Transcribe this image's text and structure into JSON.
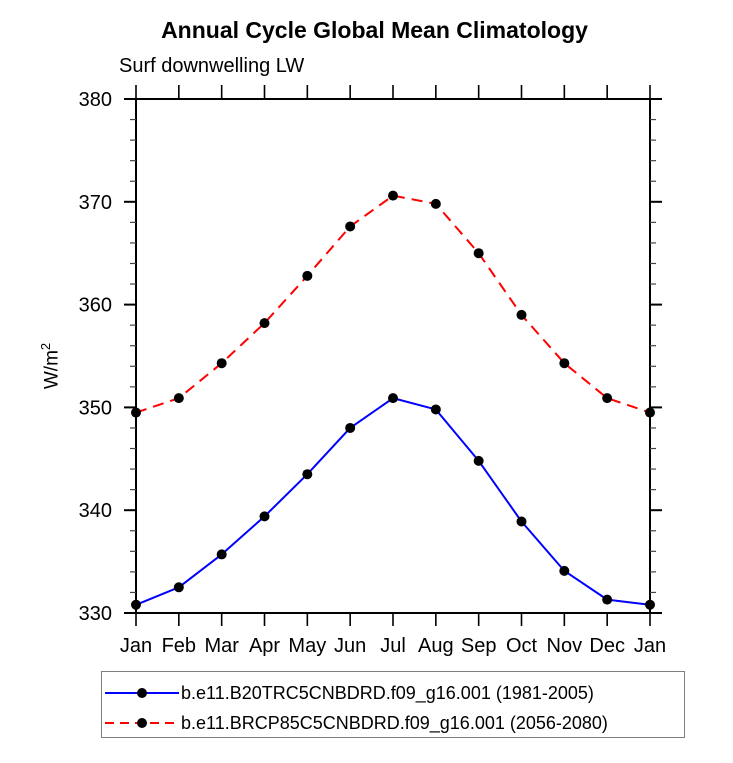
{
  "title": "Annual Cycle Global Mean Climatology",
  "subtitle": "Surf downwelling LW",
  "ylabel": {
    "base": "W/m",
    "sup": "2"
  },
  "colors": {
    "series1": "#0000ff",
    "series2": "#ff0000",
    "marker": "#000000",
    "axis": "#000000",
    "minor_tick": "#444444",
    "legend_border": "#7f7f7f"
  },
  "chart_data": {
    "type": "line",
    "title": "Annual Cycle Global Mean Climatology",
    "subtitle": "Surf downwelling LW",
    "ylabel": "W/m2",
    "x_categories": [
      "Jan",
      "Feb",
      "Mar",
      "Apr",
      "May",
      "Jun",
      "Jul",
      "Aug",
      "Sep",
      "Oct",
      "Nov",
      "Dec",
      "Jan"
    ],
    "ylim": [
      330,
      380
    ],
    "y_major_ticks": [
      330,
      340,
      350,
      360,
      370,
      380
    ],
    "y_minor_step": 2,
    "grid": false,
    "legend_position": "bottom",
    "series": [
      {
        "name": "b.e11.B20TRC5CNBDRD.f09_g16.001 (1981-2005)",
        "color": "#0000ff",
        "style": "solid",
        "marker": "filled-circle",
        "values": [
          330.8,
          332.5,
          335.7,
          339.4,
          343.5,
          348.0,
          350.9,
          349.8,
          344.8,
          338.9,
          334.1,
          331.3,
          330.8
        ]
      },
      {
        "name": "b.e11.BRCP85C5CNBDRD.f09_g16.001 (2056-2080)",
        "color": "#ff0000",
        "style": "dashed",
        "marker": "filled-circle",
        "values": [
          349.5,
          350.9,
          354.3,
          358.2,
          362.8,
          367.6,
          370.6,
          369.8,
          365.0,
          359.0,
          354.3,
          350.9,
          349.5
        ]
      }
    ]
  }
}
